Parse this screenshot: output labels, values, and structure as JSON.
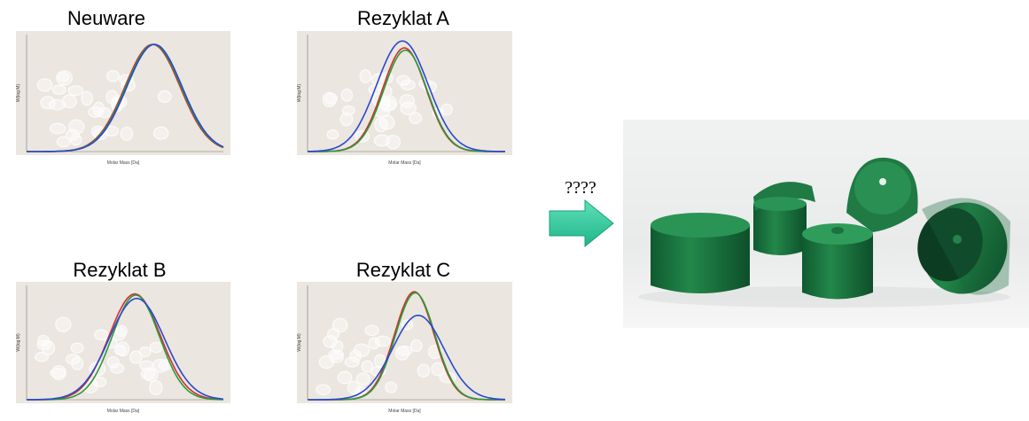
{
  "panels": [
    {
      "title": "Neuware",
      "y_axis_label": "W(log M)",
      "x_axis_label": "Molar Mass [Da]"
    },
    {
      "title": "Rezyklat A",
      "y_axis_label": "W(log M)",
      "x_axis_label": "Molar Mass [Da]"
    },
    {
      "title": "Rezyklat B",
      "y_axis_label": "W(log M)",
      "x_axis_label": "Molar Mass [Da]"
    },
    {
      "title": "Rezyklat C",
      "y_axis_label": "W(log M)",
      "x_axis_label": "Molar Mass [Da]"
    }
  ],
  "arrow_label": "????"
}
